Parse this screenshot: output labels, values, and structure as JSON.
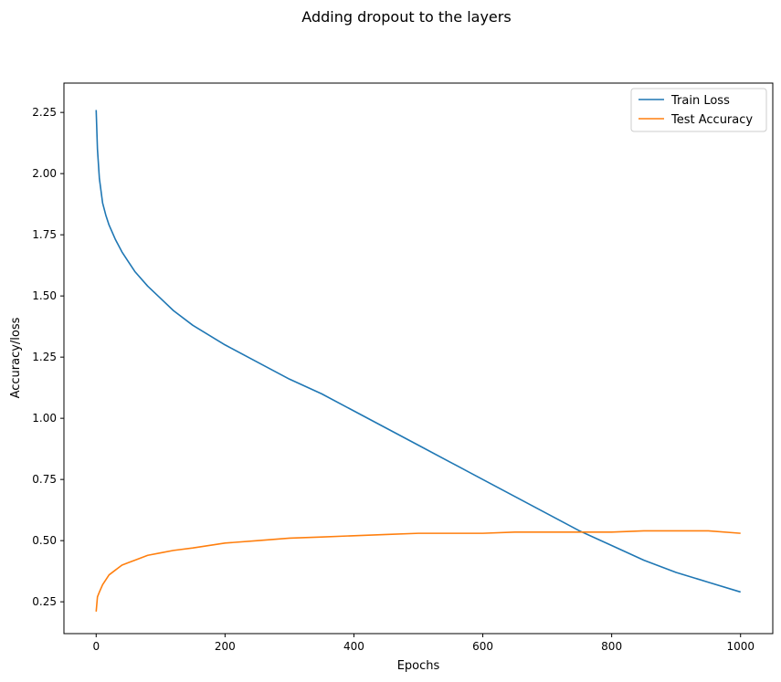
{
  "chart_data": {
    "type": "line",
    "title": "Adding dropout to the layers",
    "xlabel": "Epochs",
    "ylabel": "Accuracy/loss",
    "xlim": [
      -50,
      1050
    ],
    "ylim": [
      0.12,
      2.37
    ],
    "xticks": [
      0,
      200,
      400,
      600,
      800,
      1000
    ],
    "yticks": [
      0.25,
      0.5,
      0.75,
      1.0,
      1.25,
      1.5,
      1.75,
      2.0,
      2.25
    ],
    "ytick_labels": [
      "0.25",
      "0.50",
      "0.75",
      "1.00",
      "1.25",
      "1.50",
      "1.75",
      "2.00",
      "2.25"
    ],
    "grid": false,
    "legend_position": "top-right",
    "series": [
      {
        "name": "Train Loss",
        "color": "#1f77b4",
        "x": [
          0,
          2,
          5,
          10,
          15,
          20,
          30,
          40,
          50,
          60,
          80,
          100,
          120,
          150,
          200,
          250,
          300,
          350,
          400,
          450,
          500,
          550,
          600,
          650,
          700,
          750,
          800,
          850,
          900,
          950,
          1000
        ],
        "values": [
          2.26,
          2.1,
          1.98,
          1.88,
          1.83,
          1.79,
          1.73,
          1.68,
          1.64,
          1.6,
          1.54,
          1.49,
          1.44,
          1.38,
          1.3,
          1.23,
          1.16,
          1.1,
          1.03,
          0.96,
          0.89,
          0.82,
          0.75,
          0.68,
          0.61,
          0.54,
          0.48,
          0.42,
          0.37,
          0.33,
          0.29
        ]
      },
      {
        "name": "Test Accuracy",
        "color": "#ff7f0e",
        "x": [
          0,
          2,
          5,
          10,
          15,
          20,
          30,
          40,
          50,
          60,
          80,
          100,
          120,
          150,
          200,
          250,
          300,
          350,
          400,
          450,
          500,
          550,
          600,
          650,
          700,
          750,
          800,
          850,
          900,
          950,
          1000
        ],
        "values": [
          0.21,
          0.27,
          0.29,
          0.32,
          0.34,
          0.36,
          0.38,
          0.4,
          0.41,
          0.42,
          0.44,
          0.45,
          0.46,
          0.47,
          0.49,
          0.5,
          0.51,
          0.515,
          0.52,
          0.525,
          0.53,
          0.53,
          0.53,
          0.535,
          0.535,
          0.535,
          0.535,
          0.54,
          0.54,
          0.54,
          0.53
        ]
      }
    ]
  }
}
